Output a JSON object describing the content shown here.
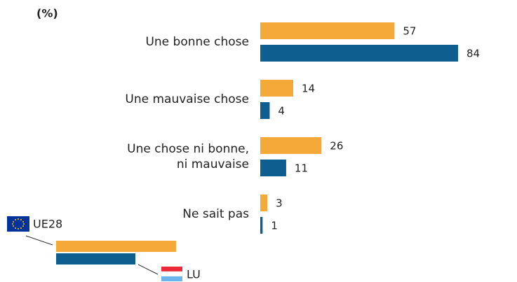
{
  "chart_data": {
    "type": "bar",
    "orientation": "horizontal",
    "title": "(%)",
    "categories": [
      "Une bonne chose",
      "Une mauvaise chose",
      "Une chose ni bonne,\nni mauvaise",
      "Ne sait pas"
    ],
    "series": [
      {
        "name": "UE28",
        "color": "#f5a939",
        "values": [
          57,
          14,
          26,
          3
        ]
      },
      {
        "name": "LU",
        "color": "#0e5f8f",
        "values": [
          84,
          4,
          11,
          1
        ]
      }
    ]
  }
}
